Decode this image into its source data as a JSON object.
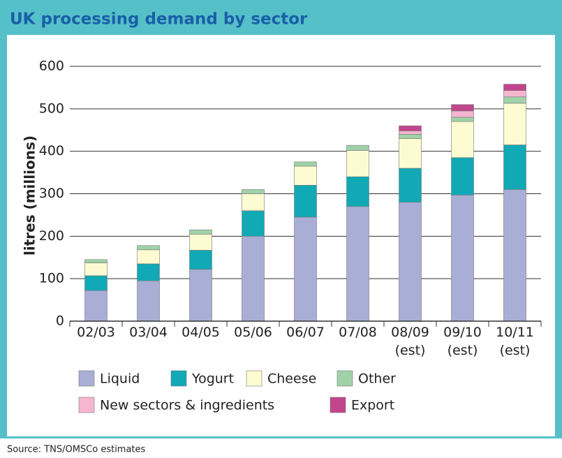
{
  "chart_data": {
    "type": "stacked_bar",
    "title": "UK processing demand by sector",
    "y_label": "litres (millions)",
    "source": "Source: TNS/OMSCo estimates",
    "categories": [
      "02/03",
      "03/04",
      "04/05",
      "05/06",
      "06/07",
      "07/08",
      "08/09 (est)",
      "09/10 (est)",
      "10/11 (est)"
    ],
    "series": [
      {
        "name": "Liquid",
        "color": "#a9aed6",
        "values": [
          72,
          95,
          122,
          200,
          245,
          270,
          280,
          297,
          310
        ]
      },
      {
        "name": "Yogurt",
        "color": "#10a9b5",
        "values": [
          35,
          40,
          45,
          60,
          75,
          70,
          80,
          88,
          105
        ]
      },
      {
        "name": "Cheese",
        "color": "#fdfbd2",
        "values": [
          30,
          33,
          38,
          40,
          45,
          62,
          70,
          85,
          98
        ]
      },
      {
        "name": "Other",
        "color": "#9fd2a8",
        "values": [
          8,
          10,
          10,
          10,
          10,
          12,
          10,
          10,
          15
        ]
      },
      {
        "name": "New sectors & ingredients",
        "color": "#f6b6cf",
        "values": [
          null,
          null,
          null,
          null,
          null,
          null,
          8,
          15,
          15
        ]
      },
      {
        "name": "Export",
        "color": "#c2458e",
        "values": [
          null,
          null,
          null,
          null,
          null,
          null,
          12,
          15,
          15
        ]
      }
    ],
    "ylim": [
      0,
      600
    ],
    "yticks": [
      0,
      100,
      200,
      300,
      400,
      500,
      600
    ],
    "grid": true
  }
}
